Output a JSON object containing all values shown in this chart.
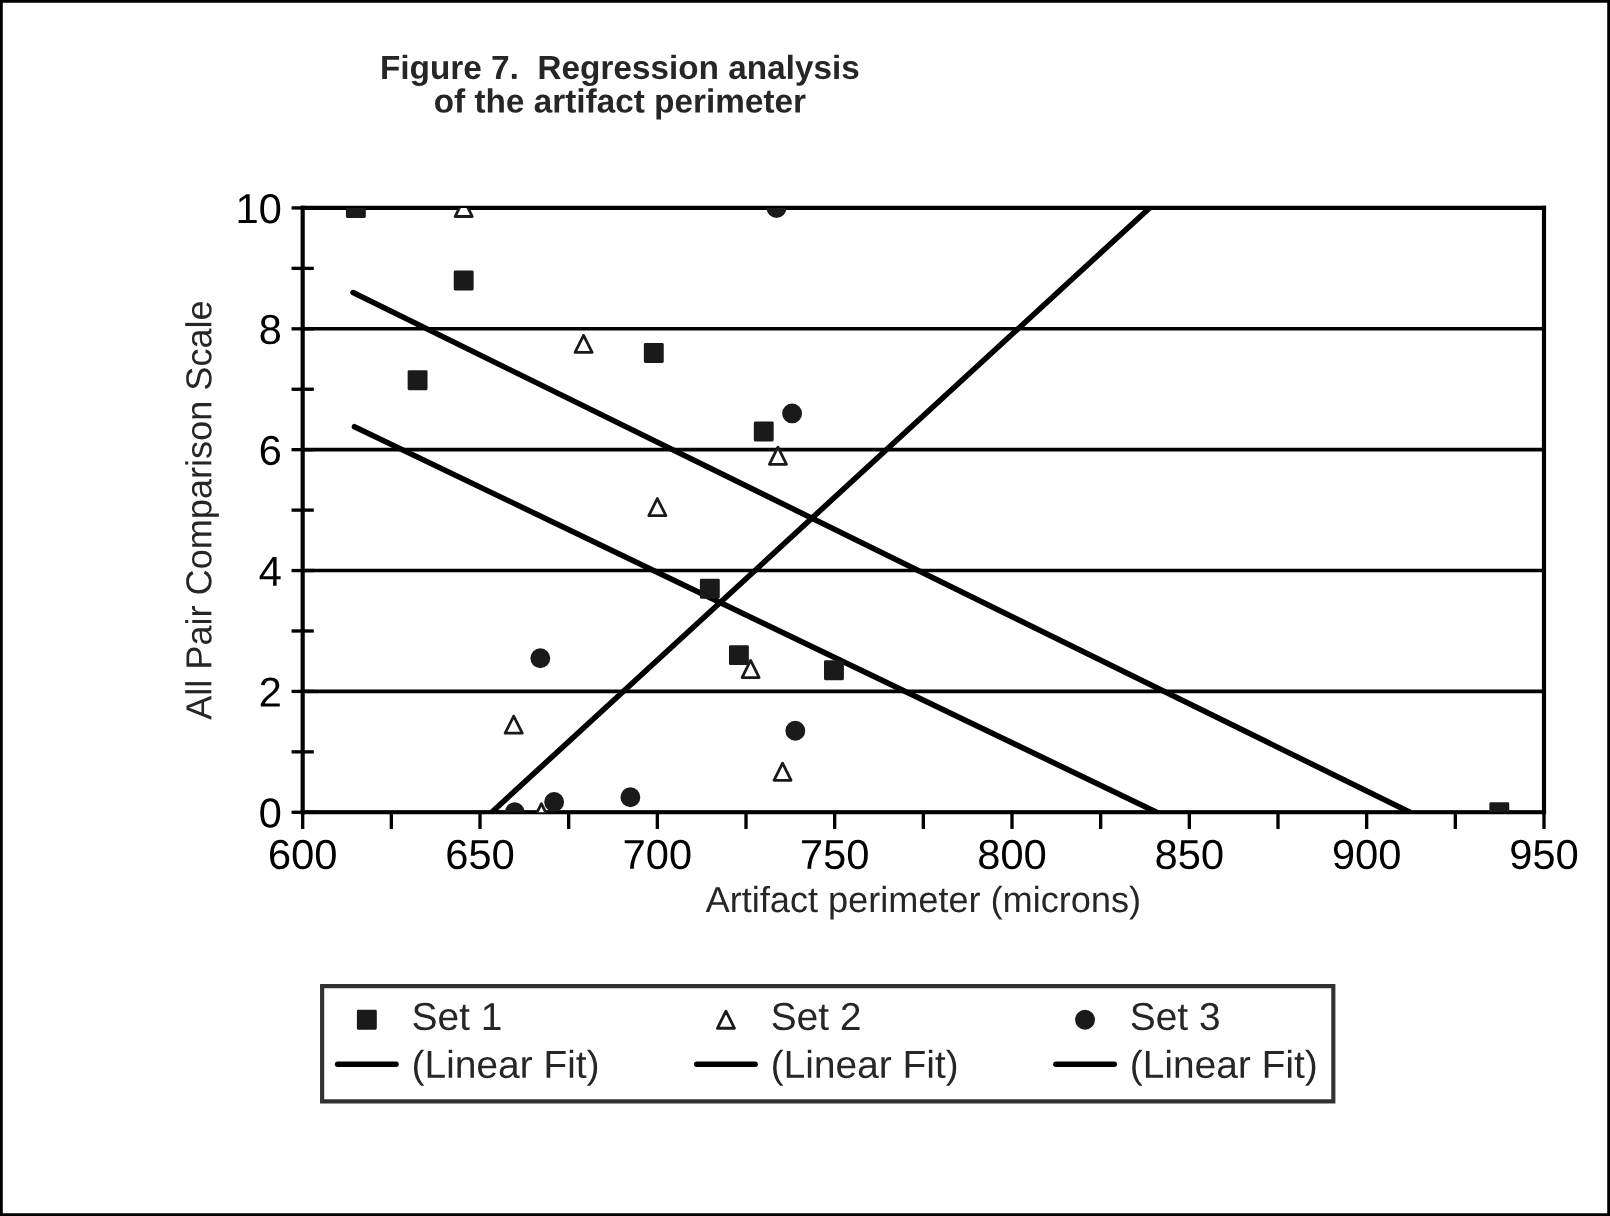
{
  "chart_data": {
    "type": "scatter",
    "title": "Figure 7.  Regression analysis\nof the artifact perimeter",
    "xlabel": "Artifact perimeter (microns)",
    "ylabel": "All Pair Comparison Scale",
    "xlim": [
      600,
      950
    ],
    "xticks": [
      600,
      {
        "value": 625,
        "label": null
      },
      650,
      {
        "value": 675,
        "label": null
      },
      700,
      {
        "value": 725,
        "label": null
      },
      750,
      {
        "value": 775,
        "label": null
      },
      800,
      {
        "value": 825,
        "label": null
      },
      850,
      {
        "value": 875,
        "label": null
      },
      900,
      {
        "value": 925,
        "label": null
      },
      950
    ],
    "ylim": [
      0,
      10
    ],
    "yticks": [
      0,
      {
        "value": 1,
        "label": null
      },
      2,
      {
        "value": 3,
        "label": null
      },
      4,
      {
        "value": 5,
        "label": null
      },
      6,
      {
        "value": 7,
        "label": null
      },
      8,
      {
        "value": 9,
        "label": null
      },
      10
    ],
    "grid": "y",
    "legend": "bottom",
    "series": [
      {
        "name": "Set 1",
        "marker": "square",
        "color": "#1a1a1a",
        "x": [
          615,
          645.4,
          632.4,
          699,
          730,
          714.8,
          723,
          749.8,
          937.4
        ],
        "values": [
          10,
          8.8,
          7.15,
          7.6,
          6.3,
          3.7,
          2.6,
          2.35,
          0
        ]
      },
      {
        "name": "Set 2",
        "marker": "triangle",
        "color": "#1a1a1a",
        "x": [
          645.4,
          679.2,
          734,
          700,
          726.3,
          659.5,
          667.3,
          735.3
        ],
        "values": [
          10,
          7.75,
          5.9,
          5.05,
          2.37,
          1.45,
          0,
          0.67
        ]
      },
      {
        "name": "Set 3",
        "marker": "circle",
        "color": "#1a1a1a",
        "x": [
          733.6,
          738,
          667,
          738.9,
          670.9,
          692.4,
          659.8
        ],
        "values": [
          10,
          6.6,
          2.55,
          1.35,
          0.17,
          0.25,
          0
        ]
      },
      {
        "name": "(Linear Fit)",
        "type": "line",
        "marker": "none",
        "line_style": "solid",
        "color": "#000000",
        "x": [
          614.2,
          912.2
        ],
        "values": [
          8.6,
          0
        ]
      },
      {
        "name": "(Linear Fit)",
        "type": "line",
        "marker": "none",
        "line_style": "solid",
        "color": "#000000",
        "x": [
          614.6,
          840.8
        ],
        "values": [
          6.38,
          0
        ]
      },
      {
        "name": "(Linear Fit)",
        "type": "line",
        "marker": "none",
        "line_style": "solid",
        "color": "#000000",
        "x": [
          653.3,
          838.8
        ],
        "values": [
          0,
          10
        ]
      }
    ]
  }
}
